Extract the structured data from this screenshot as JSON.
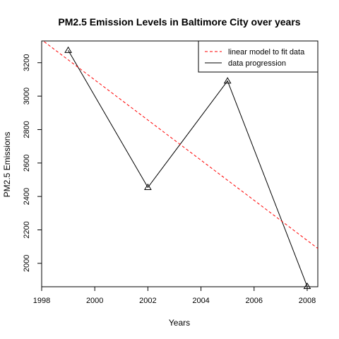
{
  "chart_data": {
    "type": "line",
    "title": "PM2.5 Emission Levels in Baltimore City over years",
    "xlabel": "Years",
    "ylabel": "PM2.5 Emissions",
    "xlim": [
      1998,
      2008.4
    ],
    "ylim": [
      1860,
      3330
    ],
    "x_ticks": [
      "1998",
      "2000",
      "2002",
      "2004",
      "2006",
      "2008"
    ],
    "y_ticks": [
      "2000",
      "2200",
      "2400",
      "2600",
      "2800",
      "3000",
      "3200"
    ],
    "grid": false,
    "legend_position": "top-right",
    "series": [
      {
        "name": "data progression",
        "style": "solid",
        "color": "#000000",
        "marker": "triangle",
        "x": [
          1999,
          2002,
          2005,
          2008
        ],
        "y": [
          3274,
          2454,
          3091,
          1862
        ]
      },
      {
        "name": "linear model to fit data",
        "style": "dashed",
        "color": "#ff0000",
        "line": {
          "intercept_at_1998": 3337,
          "slope_per_year": -120
        }
      }
    ],
    "legend": {
      "entries": [
        "linear model to fit data",
        "data progression"
      ]
    }
  }
}
